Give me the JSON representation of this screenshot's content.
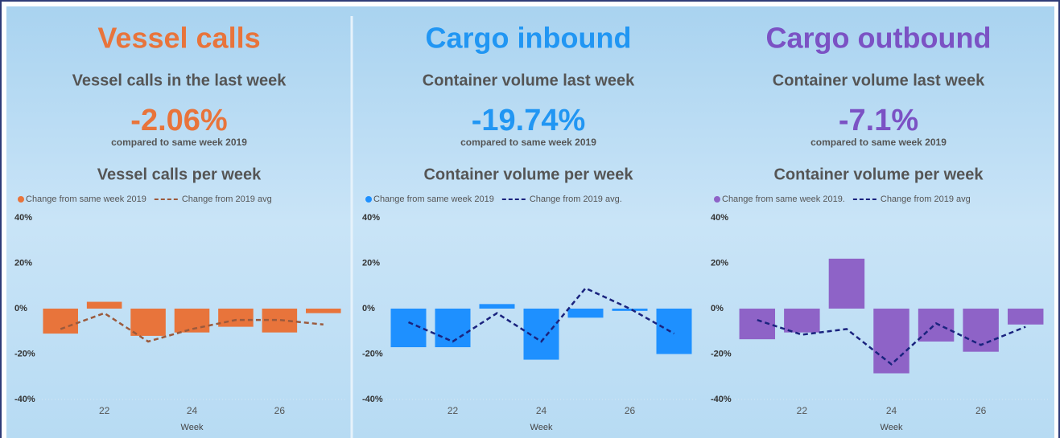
{
  "panels": [
    {
      "title": "Vessel calls",
      "subtitle": "Vessel calls in the last week",
      "kpi": "-2.06%",
      "kpi_caption": "compared to same week 2019",
      "color": "#e8743b"
    },
    {
      "title": "Cargo inbound",
      "subtitle": "Container volume last week",
      "kpi": "-19.74%",
      "kpi_caption": "compared to same week 2019",
      "color": "#2196f3"
    },
    {
      "title": "Cargo outbound",
      "subtitle": "Container volume last week",
      "kpi": "-7.1%",
      "kpi_caption": "compared to same week 2019",
      "color": "#7b52c4"
    }
  ],
  "chart_data": [
    {
      "type": "bar",
      "title": "Vessel calls per week",
      "x_label": "Week",
      "x": [
        21,
        22,
        23,
        24,
        25,
        26,
        27
      ],
      "xlim": [
        20.5,
        27.5
      ],
      "xticks": [
        22,
        24,
        26
      ],
      "ylim": [
        -40,
        40
      ],
      "yticks": [
        {
          "value": 40,
          "label": "40%"
        },
        {
          "value": 20,
          "label": "20%"
        },
        {
          "value": 0,
          "label": "0%"
        },
        {
          "value": -20,
          "label": "-20%"
        },
        {
          "value": -40,
          "label": "-40%"
        }
      ],
      "series": [
        {
          "name": "Change from same week 2019",
          "type": "bar",
          "color": "#e8743b",
          "values": [
            -11,
            3,
            -12,
            -10.5,
            -8,
            -10.5,
            -2
          ]
        },
        {
          "name": "Change from 2019 avg",
          "type": "line",
          "color": "#9b5a3c",
          "values": [
            -9,
            -2,
            -14.5,
            -9,
            -5,
            -5,
            -7
          ]
        }
      ]
    },
    {
      "type": "bar",
      "title": "Container volume per week",
      "x_label": "Week",
      "x": [
        21,
        22,
        23,
        24,
        25,
        26,
        27
      ],
      "xlim": [
        20.5,
        27.5
      ],
      "xticks": [
        22,
        24,
        26
      ],
      "ylim": [
        -40,
        40
      ],
      "yticks": [
        {
          "value": 40,
          "label": "40%"
        },
        {
          "value": 20,
          "label": "20%"
        },
        {
          "value": 0,
          "label": "0%"
        },
        {
          "value": -20,
          "label": "-20%"
        },
        {
          "value": -40,
          "label": "-40%"
        }
      ],
      "series": [
        {
          "name": "Change from same week 2019",
          "type": "bar",
          "color": "#1e90ff",
          "values": [
            -17,
            -17,
            2,
            -22.5,
            -4,
            -1,
            -20
          ]
        },
        {
          "name": "Change from 2019 avg.",
          "type": "line",
          "color": "#1a237e",
          "values": [
            -6,
            -14.5,
            -2,
            -14.5,
            9,
            0,
            -11
          ]
        }
      ]
    },
    {
      "type": "bar",
      "title": "Container volume per week",
      "x_label": "Week",
      "x": [
        21,
        22,
        23,
        24,
        25,
        26,
        27
      ],
      "xlim": [
        20.5,
        27.5
      ],
      "xticks": [
        22,
        24,
        26
      ],
      "ylim": [
        -40,
        40
      ],
      "yticks": [
        {
          "value": 40,
          "label": "40%"
        },
        {
          "value": 20,
          "label": "20%"
        },
        {
          "value": 0,
          "label": "0%"
        },
        {
          "value": -20,
          "label": "-20%"
        },
        {
          "value": -40,
          "label": "-40%"
        }
      ],
      "series": [
        {
          "name": "Change from same week 2019.",
          "type": "bar",
          "color": "#8e63c7",
          "values": [
            -13.5,
            -10.5,
            22,
            -28.5,
            -14.5,
            -19,
            -7
          ]
        },
        {
          "name": "Change from 2019 avg",
          "type": "line",
          "color": "#1a237e",
          "values": [
            -5,
            -11.5,
            -9,
            -24.5,
            -6.5,
            -16,
            -8
          ]
        }
      ]
    }
  ]
}
